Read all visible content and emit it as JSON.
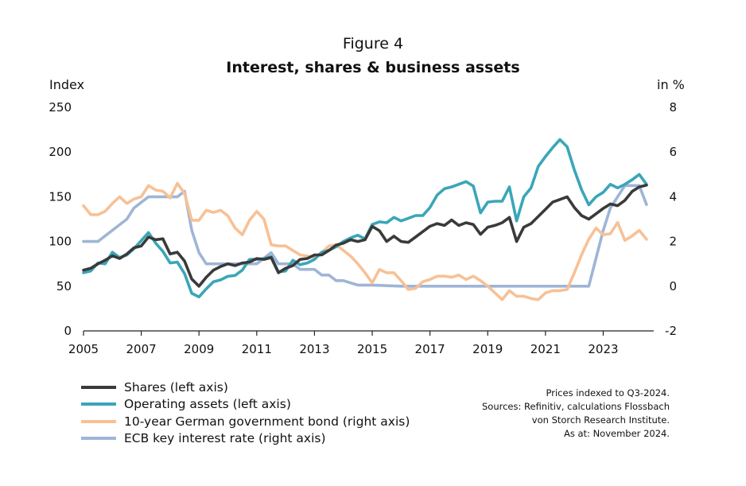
{
  "figure": {
    "label": "Figure 4",
    "title": "Interest, shares & business assets",
    "left_axis_unit": "Index",
    "right_axis_unit": "in %"
  },
  "notes": [
    "Prices indexed to Q3-2024.",
    "Sources: Refinitiv, calculations Flossbach",
    "von Storch Research Institute.",
    "As at: November 2024."
  ],
  "chart_data": {
    "type": "line",
    "title": "Interest, shares & business assets",
    "x_label": "",
    "x_ticks": [
      "2005",
      "2007",
      "2009",
      "2011",
      "2013",
      "2015",
      "2017",
      "2019",
      "2021",
      "2023"
    ],
    "x_range": [
      2005,
      2024.75
    ],
    "y_left": {
      "label": "Index",
      "range": [
        0,
        250
      ],
      "ticks": [
        0,
        50,
        100,
        150,
        200,
        250
      ],
      "tick_labels": [
        "0",
        "50",
        "100",
        "150",
        "200",
        "250"
      ]
    },
    "y_right": {
      "label": "in %",
      "range": [
        -2,
        8
      ],
      "ticks": [
        -2,
        0,
        2,
        4,
        6,
        8
      ],
      "tick_labels": [
        "-2",
        "0",
        "2",
        "4",
        "6",
        "8"
      ]
    },
    "grid": false,
    "legend_position": "bottom-left",
    "series": [
      {
        "name": "Shares (left axis)",
        "axis": "left",
        "color": "#3a3a3a",
        "points": [
          [
            2005,
            68
          ],
          [
            2005.25,
            70
          ],
          [
            2005.5,
            75
          ],
          [
            2005.75,
            79
          ],
          [
            2006,
            84
          ],
          [
            2006.25,
            81
          ],
          [
            2006.5,
            86
          ],
          [
            2006.75,
            93
          ],
          [
            2007,
            95
          ],
          [
            2007.25,
            105
          ],
          [
            2007.5,
            102
          ],
          [
            2007.75,
            103
          ],
          [
            2008,
            86
          ],
          [
            2008.25,
            88
          ],
          [
            2008.5,
            78
          ],
          [
            2008.75,
            58
          ],
          [
            2009,
            50
          ],
          [
            2009.25,
            60
          ],
          [
            2009.5,
            68
          ],
          [
            2009.75,
            72
          ],
          [
            2010,
            75
          ],
          [
            2010.25,
            73
          ],
          [
            2010.5,
            76
          ],
          [
            2010.75,
            77
          ],
          [
            2011,
            81
          ],
          [
            2011.25,
            80
          ],
          [
            2011.5,
            82
          ],
          [
            2011.75,
            65
          ],
          [
            2012,
            70
          ],
          [
            2012.25,
            73
          ],
          [
            2012.5,
            80
          ],
          [
            2012.75,
            81
          ],
          [
            2013,
            85
          ],
          [
            2013.25,
            85
          ],
          [
            2013.5,
            90
          ],
          [
            2013.75,
            96
          ],
          [
            2014,
            98
          ],
          [
            2014.25,
            102
          ],
          [
            2014.5,
            100
          ],
          [
            2014.75,
            102
          ],
          [
            2015,
            117
          ],
          [
            2015.25,
            112
          ],
          [
            2015.5,
            100
          ],
          [
            2015.75,
            106
          ],
          [
            2016,
            100
          ],
          [
            2016.25,
            99
          ],
          [
            2016.5,
            105
          ],
          [
            2016.75,
            111
          ],
          [
            2017,
            117
          ],
          [
            2017.25,
            120
          ],
          [
            2017.5,
            118
          ],
          [
            2017.75,
            124
          ],
          [
            2018,
            118
          ],
          [
            2018.25,
            121
          ],
          [
            2018.5,
            119
          ],
          [
            2018.75,
            108
          ],
          [
            2019,
            116
          ],
          [
            2019.25,
            118
          ],
          [
            2019.5,
            121
          ],
          [
            2019.75,
            127
          ],
          [
            2020,
            100
          ],
          [
            2020.25,
            116
          ],
          [
            2020.5,
            120
          ],
          [
            2020.75,
            128
          ],
          [
            2021,
            136
          ],
          [
            2021.25,
            144
          ],
          [
            2021.5,
            147
          ],
          [
            2021.75,
            150
          ],
          [
            2022,
            138
          ],
          [
            2022.25,
            129
          ],
          [
            2022.5,
            125
          ],
          [
            2022.75,
            131
          ],
          [
            2023,
            137
          ],
          [
            2023.25,
            142
          ],
          [
            2023.5,
            140
          ],
          [
            2023.75,
            146
          ],
          [
            2024,
            156
          ],
          [
            2024.25,
            161
          ],
          [
            2024.5,
            163
          ]
        ]
      },
      {
        "name": "Operating assets (left axis)",
        "axis": "left",
        "color": "#3aa6b9",
        "points": [
          [
            2005,
            65
          ],
          [
            2005.25,
            67
          ],
          [
            2005.5,
            76
          ],
          [
            2005.75,
            75
          ],
          [
            2006,
            88
          ],
          [
            2006.25,
            82
          ],
          [
            2006.5,
            85
          ],
          [
            2006.75,
            92
          ],
          [
            2007,
            101
          ],
          [
            2007.25,
            110
          ],
          [
            2007.5,
            98
          ],
          [
            2007.75,
            89
          ],
          [
            2008,
            76
          ],
          [
            2008.25,
            77
          ],
          [
            2008.5,
            64
          ],
          [
            2008.75,
            42
          ],
          [
            2009,
            38
          ],
          [
            2009.25,
            47
          ],
          [
            2009.5,
            55
          ],
          [
            2009.75,
            57
          ],
          [
            2010,
            61
          ],
          [
            2010.25,
            62
          ],
          [
            2010.5,
            68
          ],
          [
            2010.75,
            80
          ],
          [
            2011,
            80
          ],
          [
            2011.25,
            81
          ],
          [
            2011.5,
            83
          ],
          [
            2011.75,
            66
          ],
          [
            2012,
            67
          ],
          [
            2012.25,
            79
          ],
          [
            2012.5,
            74
          ],
          [
            2012.75,
            76
          ],
          [
            2013,
            80
          ],
          [
            2013.25,
            88
          ],
          [
            2013.5,
            90
          ],
          [
            2013.75,
            94
          ],
          [
            2014,
            100
          ],
          [
            2014.25,
            104
          ],
          [
            2014.5,
            107
          ],
          [
            2014.75,
            103
          ],
          [
            2015,
            119
          ],
          [
            2015.25,
            122
          ],
          [
            2015.5,
            121
          ],
          [
            2015.75,
            127
          ],
          [
            2016,
            123
          ],
          [
            2016.25,
            126
          ],
          [
            2016.5,
            129
          ],
          [
            2016.75,
            129
          ],
          [
            2017,
            138
          ],
          [
            2017.25,
            152
          ],
          [
            2017.5,
            159
          ],
          [
            2017.75,
            161
          ],
          [
            2018,
            164
          ],
          [
            2018.25,
            167
          ],
          [
            2018.5,
            162
          ],
          [
            2018.75,
            132
          ],
          [
            2019,
            144
          ],
          [
            2019.25,
            145
          ],
          [
            2019.5,
            145
          ],
          [
            2019.75,
            161
          ],
          [
            2020,
            123
          ],
          [
            2020.25,
            150
          ],
          [
            2020.5,
            160
          ],
          [
            2020.75,
            184
          ],
          [
            2021,
            195
          ],
          [
            2021.25,
            205
          ],
          [
            2021.5,
            214
          ],
          [
            2021.75,
            206
          ],
          [
            2022,
            180
          ],
          [
            2022.25,
            158
          ],
          [
            2022.5,
            141
          ],
          [
            2022.75,
            150
          ],
          [
            2023,
            155
          ],
          [
            2023.25,
            164
          ],
          [
            2023.5,
            160
          ],
          [
            2023.75,
            164
          ],
          [
            2024,
            169
          ],
          [
            2024.25,
            175
          ],
          [
            2024.5,
            164
          ]
        ]
      },
      {
        "name": "10-year German government bond (right axis)",
        "axis": "right",
        "color": "#f7c196",
        "points": [
          [
            2005,
            3.6
          ],
          [
            2005.25,
            3.2
          ],
          [
            2005.5,
            3.2
          ],
          [
            2005.75,
            3.35
          ],
          [
            2006,
            3.7
          ],
          [
            2006.25,
            4.0
          ],
          [
            2006.5,
            3.7
          ],
          [
            2006.75,
            3.9
          ],
          [
            2007,
            4.0
          ],
          [
            2007.25,
            4.5
          ],
          [
            2007.5,
            4.3
          ],
          [
            2007.75,
            4.25
          ],
          [
            2008,
            3.95
          ],
          [
            2008.25,
            4.6
          ],
          [
            2008.5,
            4.15
          ],
          [
            2008.75,
            2.95
          ],
          [
            2009,
            2.95
          ],
          [
            2009.25,
            3.4
          ],
          [
            2009.5,
            3.3
          ],
          [
            2009.75,
            3.4
          ],
          [
            2010,
            3.15
          ],
          [
            2010.25,
            2.6
          ],
          [
            2010.5,
            2.3
          ],
          [
            2010.75,
            2.95
          ],
          [
            2011,
            3.35
          ],
          [
            2011.25,
            3.0
          ],
          [
            2011.5,
            1.85
          ],
          [
            2011.75,
            1.8
          ],
          [
            2012,
            1.8
          ],
          [
            2012.25,
            1.6
          ],
          [
            2012.5,
            1.4
          ],
          [
            2012.75,
            1.35
          ],
          [
            2013,
            1.3
          ],
          [
            2013.25,
            1.5
          ],
          [
            2013.5,
            1.8
          ],
          [
            2013.75,
            1.85
          ],
          [
            2014,
            1.6
          ],
          [
            2014.25,
            1.35
          ],
          [
            2014.5,
            1.0
          ],
          [
            2014.75,
            0.6
          ],
          [
            2015,
            0.15
          ],
          [
            2015.25,
            0.75
          ],
          [
            2015.5,
            0.6
          ],
          [
            2015.75,
            0.6
          ],
          [
            2016,
            0.25
          ],
          [
            2016.25,
            -0.15
          ],
          [
            2016.5,
            -0.1
          ],
          [
            2016.75,
            0.2
          ],
          [
            2017,
            0.3
          ],
          [
            2017.25,
            0.45
          ],
          [
            2017.5,
            0.45
          ],
          [
            2017.75,
            0.4
          ],
          [
            2018,
            0.5
          ],
          [
            2018.25,
            0.3
          ],
          [
            2018.5,
            0.45
          ],
          [
            2018.75,
            0.25
          ],
          [
            2019,
            0.0
          ],
          [
            2019.25,
            -0.3
          ],
          [
            2019.5,
            -0.6
          ],
          [
            2019.75,
            -0.2
          ],
          [
            2020,
            -0.45
          ],
          [
            2020.25,
            -0.45
          ],
          [
            2020.5,
            -0.55
          ],
          [
            2020.75,
            -0.6
          ],
          [
            2021,
            -0.3
          ],
          [
            2021.25,
            -0.2
          ],
          [
            2021.5,
            -0.2
          ],
          [
            2021.75,
            -0.15
          ],
          [
            2022,
            0.6
          ],
          [
            2022.25,
            1.4
          ],
          [
            2022.5,
            2.1
          ],
          [
            2022.75,
            2.6
          ],
          [
            2023,
            2.3
          ],
          [
            2023.25,
            2.35
          ],
          [
            2023.5,
            2.85
          ],
          [
            2023.75,
            2.05
          ],
          [
            2024,
            2.25
          ],
          [
            2024.25,
            2.5
          ],
          [
            2024.5,
            2.1
          ]
        ]
      },
      {
        "name": "ECB key interest rate (right axis)",
        "axis": "right",
        "color": "#9fb5d6",
        "points": [
          [
            2005,
            2.0
          ],
          [
            2005.5,
            2.0
          ],
          [
            2005.75,
            2.25
          ],
          [
            2006,
            2.5
          ],
          [
            2006.25,
            2.75
          ],
          [
            2006.5,
            3.0
          ],
          [
            2006.75,
            3.5
          ],
          [
            2007,
            3.75
          ],
          [
            2007.25,
            4.0
          ],
          [
            2007.5,
            4.0
          ],
          [
            2007.75,
            4.0
          ],
          [
            2008,
            4.0
          ],
          [
            2008.25,
            4.0
          ],
          [
            2008.5,
            4.25
          ],
          [
            2008.75,
            2.5
          ],
          [
            2009,
            1.5
          ],
          [
            2009.25,
            1.0
          ],
          [
            2009.5,
            1.0
          ],
          [
            2010,
            1.0
          ],
          [
            2010.5,
            1.0
          ],
          [
            2011,
            1.0
          ],
          [
            2011.25,
            1.25
          ],
          [
            2011.5,
            1.5
          ],
          [
            2011.75,
            1.0
          ],
          [
            2012,
            1.0
          ],
          [
            2012.25,
            1.0
          ],
          [
            2012.5,
            0.75
          ],
          [
            2013,
            0.75
          ],
          [
            2013.25,
            0.5
          ],
          [
            2013.5,
            0.5
          ],
          [
            2013.75,
            0.25
          ],
          [
            2014,
            0.25
          ],
          [
            2014.25,
            0.15
          ],
          [
            2014.5,
            0.05
          ],
          [
            2015,
            0.05
          ],
          [
            2016,
            0.0
          ],
          [
            2017,
            0.0
          ],
          [
            2018,
            0.0
          ],
          [
            2019,
            0.0
          ],
          [
            2020,
            0.0
          ],
          [
            2021,
            0.0
          ],
          [
            2022,
            0.0
          ],
          [
            2022.5,
            0.0
          ],
          [
            2022.75,
            1.25
          ],
          [
            2023,
            2.5
          ],
          [
            2023.25,
            3.5
          ],
          [
            2023.5,
            4.0
          ],
          [
            2023.75,
            4.5
          ],
          [
            2024,
            4.5
          ],
          [
            2024.25,
            4.5
          ],
          [
            2024.5,
            3.65
          ]
        ]
      }
    ]
  }
}
